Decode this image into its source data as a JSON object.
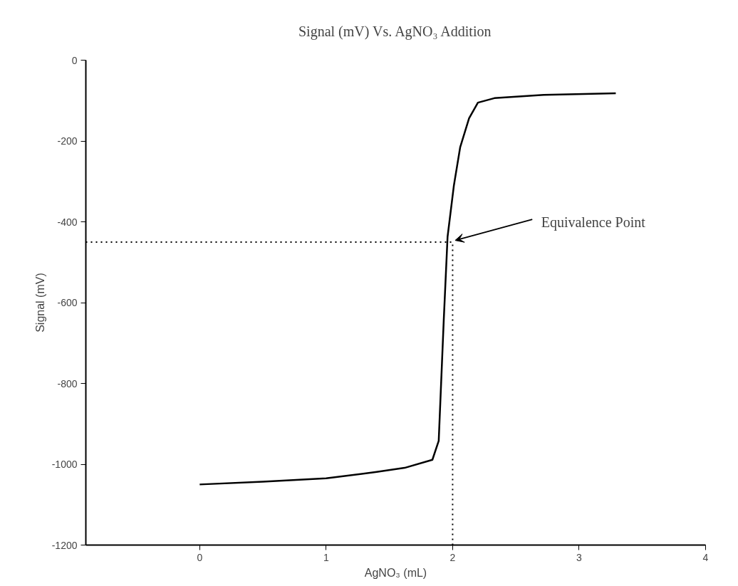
{
  "chart_data": {
    "type": "line",
    "title": "Signal (mV) Vs. AgNO₃ Addition",
    "xlabel": "AgNO₃ (mL)",
    "ylabel": "Signal (mV)",
    "xlim": [
      -0.9,
      4
    ],
    "xticks": [
      0,
      1,
      2,
      3,
      4
    ],
    "ylim": [
      -1200,
      0
    ],
    "yticks": [
      0,
      -200,
      -400,
      -600,
      -800,
      -1000,
      -1200
    ],
    "grid": false,
    "marker": "none",
    "series": [
      {
        "color": "#000000",
        "line_style": "solid",
        "x": [
          0,
          0.5,
          1.0,
          1.4,
          1.62,
          1.84,
          1.89,
          1.93,
          1.96,
          2.01,
          2.06,
          2.13,
          2.2,
          2.33,
          2.72,
          3.29
        ],
        "values": [
          -1050,
          -1043,
          -1035,
          -1019,
          -1009,
          -989,
          -942,
          -642,
          -437,
          -310,
          -215,
          -144,
          -105,
          -94,
          -86,
          -82
        ]
      },
      {
        "color": "#000000",
        "line_style": "dotted",
        "x": [
          -0.9,
          2
        ],
        "values": [
          -450,
          -450
        ]
      },
      {
        "color": "#000000",
        "line_style": "dotted",
        "x": [
          2,
          2
        ],
        "values": [
          -1200,
          -450
        ]
      }
    ],
    "annotations": [
      {
        "text": "Equivalence Point",
        "x": 2,
        "y": -450
      }
    ]
  }
}
